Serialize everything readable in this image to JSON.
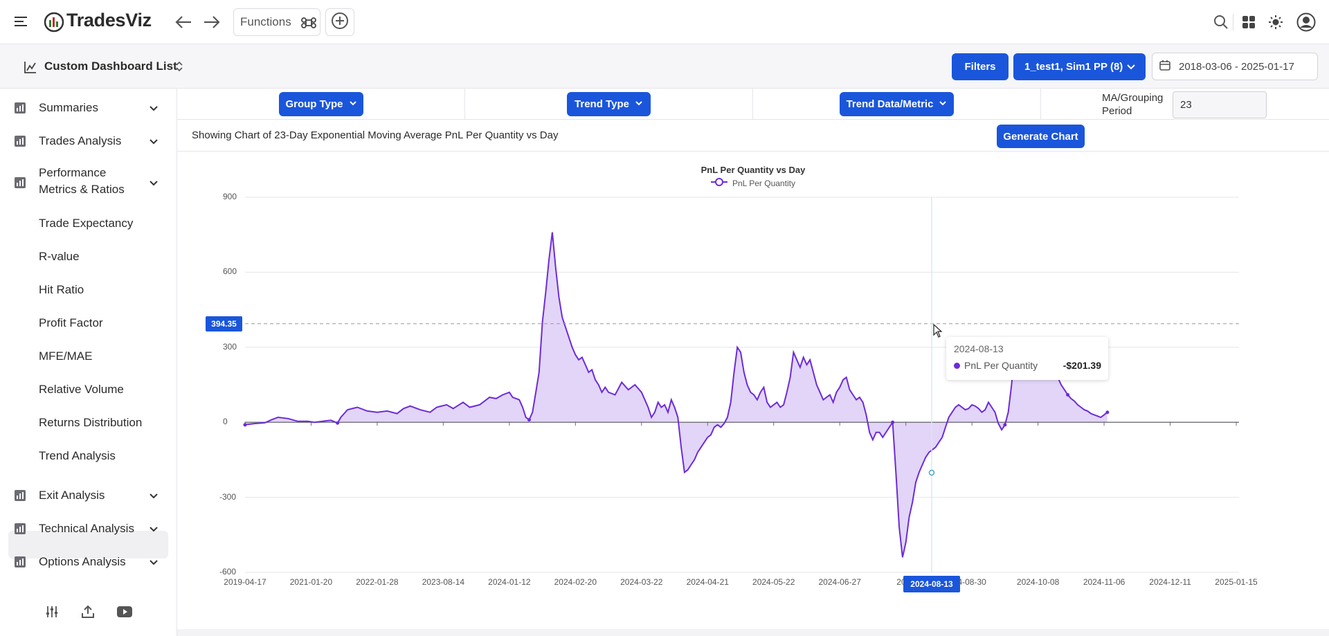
{
  "app": {
    "name": "TradesViz",
    "functions_label": "Functions"
  },
  "dashboard": {
    "title": "Custom Dashboard List",
    "filters_label": "Filters",
    "account_label": "1_test1, Sim1 PP (8)",
    "date_range": "2018-03-06 - 2025-01-17"
  },
  "sidebar": {
    "sections": [
      {
        "label": "Summaries"
      },
      {
        "label": "Trades Analysis"
      },
      {
        "label_line1": "Performance",
        "label_line2": "Metrics & Ratios"
      },
      {
        "label": "Exit Analysis"
      },
      {
        "label": "Technical Analysis"
      },
      {
        "label": "Options Analysis"
      }
    ],
    "sub_items": [
      "Trade Expectancy",
      "R-value",
      "Hit Ratio",
      "Profit Factor",
      "MFE/MAE",
      "Relative Volume",
      "Returns Distribution",
      "Trend Analysis"
    ],
    "active_item": "Trend Analysis"
  },
  "controls": {
    "group_type": "Group Type",
    "trend_type": "Trend Type",
    "trend_metric": "Trend Data/Metric",
    "ma_label_1": "MA/Grouping",
    "ma_label_2": "Period",
    "ma_value": "23",
    "info_text": "Showing Chart of 23-Day Exponential Moving Average PnL Per Quantity vs Day",
    "generate_label": "Generate Chart"
  },
  "colors": {
    "accent": "#1a56db",
    "series_line": "#6c2bd9",
    "series_fill": "#e2d5f8"
  },
  "chart_data": {
    "type": "area",
    "title": "PnL Per Quantity vs Day",
    "series_name": "PnL Per Quantity",
    "ylim": [
      -600,
      900
    ],
    "y_ticks": [
      "900",
      "600",
      "300",
      "0",
      "-300",
      "-600"
    ],
    "x_tick_labels": [
      "2019-04-17",
      "2021-01-20",
      "2022-01-28",
      "2023-08-14",
      "2024-01-12",
      "2024-02-20",
      "2024-03-22",
      "2024-04-21",
      "2024-05-22",
      "2024-06-27",
      "2024",
      "4-08-30",
      "2024-10-08",
      "2024-11-06",
      "2024-12-11",
      "2025-01-15"
    ],
    "crosshair_y": "394.35",
    "crosshair_x": "2024-08-13",
    "tooltip": {
      "date": "2024-08-13",
      "series": "PnL Per Quantity",
      "value": "-$201.39"
    },
    "x_index_max": 300,
    "points": [
      [
        0,
        -10
      ],
      [
        3,
        -5
      ],
      [
        6,
        -2
      ],
      [
        8,
        10
      ],
      [
        10,
        20
      ],
      [
        13,
        15
      ],
      [
        16,
        4
      ],
      [
        19,
        4
      ],
      [
        21,
        0
      ],
      [
        24,
        5
      ],
      [
        26,
        8
      ],
      [
        28,
        -3
      ],
      [
        29,
        20
      ],
      [
        31,
        50
      ],
      [
        34,
        60
      ],
      [
        37,
        45
      ],
      [
        40,
        40
      ],
      [
        43,
        45
      ],
      [
        46,
        35
      ],
      [
        48,
        55
      ],
      [
        50,
        65
      ],
      [
        53,
        50
      ],
      [
        56,
        40
      ],
      [
        58,
        60
      ],
      [
        61,
        70
      ],
      [
        63,
        55
      ],
      [
        66,
        80
      ],
      [
        68,
        60
      ],
      [
        71,
        70
      ],
      [
        74,
        100
      ],
      [
        76,
        95
      ],
      [
        78,
        110
      ],
      [
        80,
        120
      ],
      [
        81,
        100
      ],
      [
        83,
        90
      ],
      [
        84,
        60
      ],
      [
        85,
        20
      ],
      [
        86,
        10
      ],
      [
        87,
        40
      ],
      [
        88,
        120
      ],
      [
        89,
        200
      ],
      [
        90,
        400
      ],
      [
        91,
        520
      ],
      [
        92,
        650
      ],
      [
        93,
        760
      ],
      [
        94,
        620
      ],
      [
        95,
        500
      ],
      [
        96,
        420
      ],
      [
        97,
        380
      ],
      [
        98,
        340
      ],
      [
        99,
        300
      ],
      [
        100,
        270
      ],
      [
        101,
        250
      ],
      [
        102,
        260
      ],
      [
        103,
        230
      ],
      [
        104,
        200
      ],
      [
        105,
        210
      ],
      [
        106,
        170
      ],
      [
        107,
        150
      ],
      [
        108,
        120
      ],
      [
        109,
        140
      ],
      [
        110,
        120
      ],
      [
        112,
        110
      ],
      [
        114,
        160
      ],
      [
        116,
        130
      ],
      [
        118,
        150
      ],
      [
        120,
        120
      ],
      [
        121,
        90
      ],
      [
        122,
        60
      ],
      [
        123,
        20
      ],
      [
        124,
        40
      ],
      [
        125,
        80
      ],
      [
        126,
        60
      ],
      [
        127,
        70
      ],
      [
        128,
        40
      ],
      [
        129,
        90
      ],
      [
        130,
        60
      ],
      [
        131,
        20
      ],
      [
        132,
        -100
      ],
      [
        133,
        -200
      ],
      [
        134,
        -190
      ],
      [
        135,
        -170
      ],
      [
        136,
        -150
      ],
      [
        137,
        -120
      ],
      [
        138,
        -100
      ],
      [
        139,
        -80
      ],
      [
        140,
        -60
      ],
      [
        141,
        -50
      ],
      [
        142,
        -20
      ],
      [
        143,
        -10
      ],
      [
        144,
        -20
      ],
      [
        145,
        -5
      ],
      [
        146,
        20
      ],
      [
        147,
        80
      ],
      [
        148,
        200
      ],
      [
        149,
        300
      ],
      [
        150,
        280
      ],
      [
        151,
        200
      ],
      [
        152,
        150
      ],
      [
        153,
        120
      ],
      [
        154,
        110
      ],
      [
        155,
        90
      ],
      [
        156,
        120
      ],
      [
        157,
        140
      ],
      [
        158,
        80
      ],
      [
        159,
        60
      ],
      [
        160,
        70
      ],
      [
        161,
        80
      ],
      [
        162,
        60
      ],
      [
        163,
        70
      ],
      [
        164,
        120
      ],
      [
        165,
        180
      ],
      [
        166,
        280
      ],
      [
        167,
        250
      ],
      [
        168,
        220
      ],
      [
        169,
        260
      ],
      [
        170,
        230
      ],
      [
        171,
        250
      ],
      [
        172,
        200
      ],
      [
        173,
        150
      ],
      [
        174,
        120
      ],
      [
        175,
        90
      ],
      [
        176,
        100
      ],
      [
        177,
        110
      ],
      [
        178,
        80
      ],
      [
        179,
        120
      ],
      [
        180,
        140
      ],
      [
        181,
        170
      ],
      [
        182,
        180
      ],
      [
        183,
        130
      ],
      [
        184,
        110
      ],
      [
        185,
        90
      ],
      [
        186,
        100
      ],
      [
        187,
        80
      ],
      [
        188,
        30
      ],
      [
        189,
        -40
      ],
      [
        190,
        -70
      ],
      [
        191,
        -40
      ],
      [
        192,
        -40
      ],
      [
        193,
        -60
      ],
      [
        194,
        -40
      ],
      [
        195,
        -20
      ],
      [
        196,
        0
      ],
      [
        197,
        -200
      ],
      [
        198,
        -420
      ],
      [
        199,
        -540
      ],
      [
        200,
        -480
      ],
      [
        201,
        -380
      ],
      [
        202,
        -320
      ],
      [
        203,
        -240
      ],
      [
        204,
        -200
      ],
      [
        205,
        -170
      ],
      [
        206,
        -140
      ],
      [
        207,
        -120
      ],
      [
        208,
        -110
      ],
      [
        209,
        -100
      ],
      [
        210,
        -80
      ],
      [
        211,
        -60
      ],
      [
        212,
        -20
      ],
      [
        213,
        20
      ],
      [
        214,
        40
      ],
      [
        215,
        60
      ],
      [
        216,
        70
      ],
      [
        217,
        60
      ],
      [
        218,
        50
      ],
      [
        219,
        55
      ],
      [
        220,
        70
      ],
      [
        221,
        65
      ],
      [
        222,
        55
      ],
      [
        223,
        40
      ],
      [
        224,
        50
      ],
      [
        225,
        80
      ],
      [
        226,
        60
      ],
      [
        227,
        40
      ],
      [
        228,
        -5
      ],
      [
        229,
        -30
      ],
      [
        230,
        -10
      ],
      [
        231,
        40
      ],
      [
        232,
        150
      ],
      [
        233,
        300
      ],
      [
        234,
        280
      ],
      [
        235,
        300
      ],
      [
        236,
        250
      ],
      [
        237,
        220
      ],
      [
        238,
        210
      ],
      [
        239,
        240
      ],
      [
        240,
        260
      ],
      [
        241,
        270
      ],
      [
        242,
        250
      ],
      [
        243,
        230
      ],
      [
        244,
        210
      ],
      [
        245,
        200
      ],
      [
        246,
        180
      ],
      [
        247,
        150
      ],
      [
        248,
        130
      ],
      [
        249,
        110
      ],
      [
        250,
        95
      ],
      [
        251,
        85
      ],
      [
        252,
        70
      ],
      [
        253,
        60
      ],
      [
        254,
        50
      ],
      [
        255,
        45
      ],
      [
        256,
        35
      ],
      [
        257,
        30
      ],
      [
        258,
        25
      ],
      [
        259,
        20
      ],
      [
        260,
        30
      ],
      [
        261,
        40
      ]
    ]
  }
}
